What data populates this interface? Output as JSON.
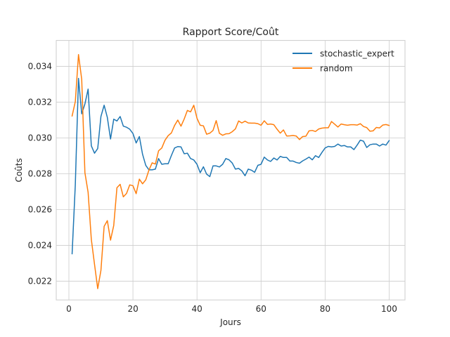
{
  "chart_data": {
    "type": "line",
    "title": "Rapport Score/Coût",
    "xlabel": "Jours",
    "ylabel": "Coûts",
    "xlim": [
      -3.95,
      104.95
    ],
    "ylim": [
      0.02095,
      0.03545
    ],
    "x_ticks": [
      0,
      20,
      40,
      60,
      80,
      100
    ],
    "y_ticks": [
      0.022,
      0.024,
      0.026,
      0.028,
      0.03,
      0.032,
      0.034
    ],
    "y_tick_labels": [
      "0.022",
      "0.024",
      "0.026",
      "0.028",
      "0.030",
      "0.032",
      "0.034"
    ],
    "grid": true,
    "legend_position": "top-right",
    "x": [
      1,
      2,
      3,
      4,
      5,
      6,
      7,
      8,
      9,
      10,
      11,
      12,
      13,
      14,
      15,
      16,
      17,
      18,
      19,
      20,
      21,
      22,
      23,
      24,
      25,
      26,
      27,
      28,
      29,
      30,
      31,
      32,
      33,
      34,
      35,
      36,
      37,
      38,
      39,
      40,
      41,
      42,
      43,
      44,
      45,
      46,
      47,
      48,
      49,
      50,
      51,
      52,
      53,
      54,
      55,
      56,
      57,
      58,
      59,
      60,
      61,
      62,
      63,
      64,
      65,
      66,
      67,
      68,
      69,
      70,
      71,
      72,
      73,
      74,
      75,
      76,
      77,
      78,
      79,
      80,
      81,
      82,
      83,
      84,
      85,
      86,
      87,
      88,
      89,
      90,
      91,
      92,
      93,
      94,
      95,
      96,
      97,
      98,
      99,
      100
    ],
    "series": [
      {
        "name": "stochastic_expert",
        "color": "#1f77b4",
        "values": [
          0.02353,
          0.02738,
          0.03333,
          0.03135,
          0.0319,
          0.03273,
          0.02956,
          0.02915,
          0.02941,
          0.0312,
          0.03183,
          0.03115,
          0.02994,
          0.03105,
          0.03095,
          0.0312,
          0.03066,
          0.0306,
          0.03049,
          0.03025,
          0.02972,
          0.03008,
          0.02909,
          0.02847,
          0.02822,
          0.02822,
          0.02826,
          0.02885,
          0.02853,
          0.02856,
          0.02856,
          0.02902,
          0.02944,
          0.02952,
          0.0295,
          0.02912,
          0.02915,
          0.02885,
          0.02877,
          0.02853,
          0.02806,
          0.02839,
          0.02798,
          0.02784,
          0.02844,
          0.02844,
          0.02838,
          0.02853,
          0.02885,
          0.02878,
          0.0286,
          0.02826,
          0.0283,
          0.02816,
          0.02789,
          0.02826,
          0.0282,
          0.02808,
          0.02847,
          0.02853,
          0.02893,
          0.02877,
          0.02869,
          0.02888,
          0.02877,
          0.02897,
          0.02891,
          0.02891,
          0.02871,
          0.02871,
          0.02863,
          0.02859,
          0.02872,
          0.02882,
          0.02893,
          0.02878,
          0.02901,
          0.02891,
          0.02919,
          0.02944,
          0.02953,
          0.0295,
          0.02953,
          0.02966,
          0.02955,
          0.02958,
          0.0295,
          0.0295,
          0.02935,
          0.0296,
          0.02988,
          0.02982,
          0.02947,
          0.02962,
          0.02966,
          0.02966,
          0.02955,
          0.02966,
          0.0296,
          0.02985
        ]
      },
      {
        "name": "random",
        "color": "#ff7f0e",
        "values": [
          0.03123,
          0.03203,
          0.03466,
          0.03328,
          0.02806,
          0.02696,
          0.02434,
          0.02294,
          0.02158,
          0.0226,
          0.02506,
          0.02538,
          0.02429,
          0.02511,
          0.02722,
          0.02741,
          0.02671,
          0.0269,
          0.02738,
          0.02733,
          0.02689,
          0.0277,
          0.02744,
          0.02766,
          0.02821,
          0.02861,
          0.02854,
          0.02928,
          0.02944,
          0.02987,
          0.03013,
          0.03028,
          0.0307,
          0.031,
          0.03066,
          0.03106,
          0.03154,
          0.03146,
          0.03183,
          0.0311,
          0.03071,
          0.03068,
          0.03021,
          0.03027,
          0.03042,
          0.03097,
          0.03026,
          0.03015,
          0.03023,
          0.03024,
          0.03035,
          0.03051,
          0.03095,
          0.03084,
          0.03094,
          0.03084,
          0.03083,
          0.03083,
          0.0308,
          0.03071,
          0.03096,
          0.03076,
          0.03078,
          0.03074,
          0.03049,
          0.03027,
          0.03045,
          0.03011,
          0.03012,
          0.03014,
          0.03011,
          0.02991,
          0.03008,
          0.0301,
          0.0304,
          0.03042,
          0.03036,
          0.0305,
          0.03055,
          0.03057,
          0.03057,
          0.03092,
          0.03077,
          0.03061,
          0.03078,
          0.03074,
          0.03071,
          0.03074,
          0.03074,
          0.03072,
          0.0308,
          0.03064,
          0.03058,
          0.03038,
          0.0304,
          0.03059,
          0.03056,
          0.03072,
          0.03075,
          0.0307
        ]
      }
    ]
  }
}
